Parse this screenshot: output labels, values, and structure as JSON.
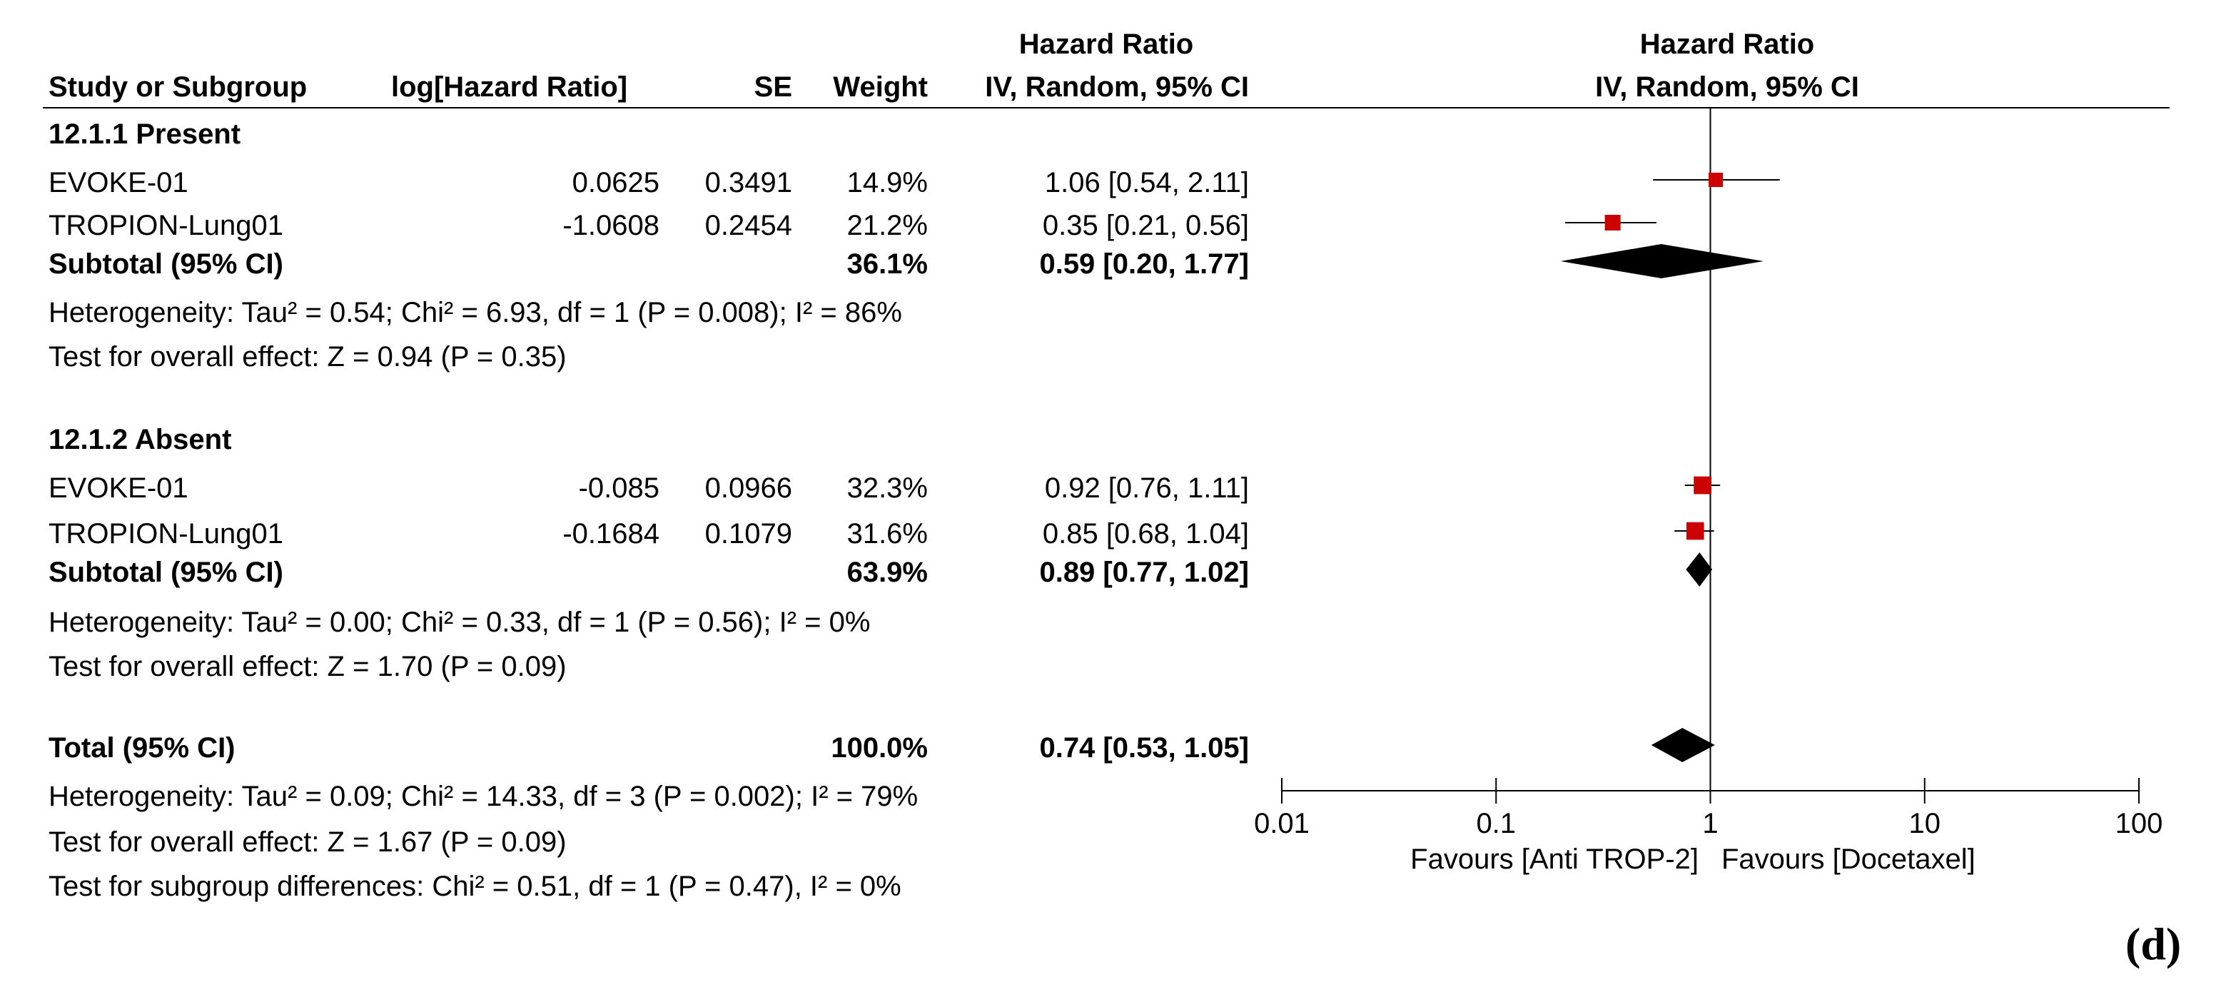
{
  "chart_data": {
    "type": "forest",
    "title": "Hazard Ratio",
    "method_label": "IV, Random, 95% CI",
    "columns": {
      "study": "Study or Subgroup",
      "log_hr": "log[Hazard Ratio]",
      "se": "SE",
      "weight": "Weight",
      "hr_title": "Hazard Ratio",
      "hr_method": "IV, Random, 95% CI"
    },
    "plot_header": {
      "title": "Hazard Ratio",
      "method": "IV, Random, 95% CI"
    },
    "subgroups": [
      {
        "name": "12.1.1 Present",
        "studies": [
          {
            "name": "EVOKE-01",
            "log_hr": "0.0625",
            "se": "0.3491",
            "weight": "14.9%",
            "ci_text": "1.06 [0.54, 2.11]",
            "hr": 1.06,
            "lo": 0.54,
            "hi": 2.11,
            "w": 14.9
          },
          {
            "name": "TROPION-Lung01",
            "log_hr": "-1.0608",
            "se": "0.2454",
            "weight": "21.2%",
            "ci_text": "0.35 [0.21, 0.56]",
            "hr": 0.35,
            "lo": 0.21,
            "hi": 0.56,
            "w": 21.2
          }
        ],
        "subtotal": {
          "label": "Subtotal (95% CI)",
          "weight": "36.1%",
          "ci_text": "0.59 [0.20, 1.77]",
          "hr": 0.59,
          "lo": 0.2,
          "hi": 1.77
        },
        "heterogeneity": "Heterogeneity: Tau² = 0.54; Chi² = 6.93, df = 1 (P = 0.008); I² = 86%",
        "overall_effect": "Test for overall effect: Z = 0.94 (P = 0.35)"
      },
      {
        "name": "12.1.2 Absent",
        "studies": [
          {
            "name": "EVOKE-01",
            "log_hr": "-0.085",
            "se": "0.0966",
            "weight": "32.3%",
            "ci_text": "0.92 [0.76, 1.11]",
            "hr": 0.92,
            "lo": 0.76,
            "hi": 1.11,
            "w": 32.3
          },
          {
            "name": "TROPION-Lung01",
            "log_hr": "-0.1684",
            "se": "0.1079",
            "weight": "31.6%",
            "ci_text": "0.85 [0.68, 1.04]",
            "hr": 0.85,
            "lo": 0.68,
            "hi": 1.04,
            "w": 31.6
          }
        ],
        "subtotal": {
          "label": "Subtotal (95% CI)",
          "weight": "63.9%",
          "ci_text": "0.89 [0.77, 1.02]",
          "hr": 0.89,
          "lo": 0.77,
          "hi": 1.02
        },
        "heterogeneity": "Heterogeneity: Tau² = 0.00; Chi² = 0.33, df = 1 (P = 0.56); I² = 0%",
        "overall_effect": "Test for overall effect: Z = 1.70 (P = 0.09)"
      }
    ],
    "total": {
      "label": "Total (95% CI)",
      "weight": "100.0%",
      "ci_text": "0.74 [0.53, 1.05]",
      "hr": 0.74,
      "lo": 0.53,
      "hi": 1.05,
      "heterogeneity": "Heterogeneity: Tau² = 0.09; Chi² = 14.33, df = 3 (P = 0.002); I² = 79%",
      "overall_effect": "Test for overall effect: Z = 1.67 (P = 0.09)",
      "subgroup_differences": "Test for subgroup differences: Chi² = 0.51, df = 1 (P = 0.47), I² = 0%"
    },
    "x_axis": {
      "scale": "log",
      "range": [
        0.01,
        100
      ],
      "ticks": [
        0.01,
        0.1,
        1,
        10,
        100
      ],
      "tick_labels": [
        "0.01",
        "0.1",
        "1",
        "10",
        "100"
      ],
      "favours_left": "Favours [Anti TROP-2]",
      "favours_right": "Favours [Docetaxel]"
    },
    "colors": {
      "study_marker": "#cc0000",
      "diamond": "#000000",
      "line": "#000000"
    }
  },
  "panel_label": "(d)"
}
